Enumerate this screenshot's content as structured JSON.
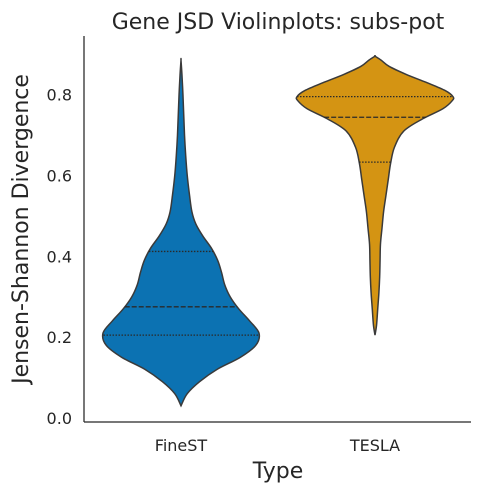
{
  "chart_data": {
    "type": "violin",
    "title": "Gene JSD Violinplots: subs-pot",
    "xlabel": "Type",
    "ylabel": "Jensen-Shannon Divergence",
    "categories": [
      "FineST",
      "TESLA"
    ],
    "ylim": [
      -0.01,
      0.945
    ],
    "yticks": [
      0.0,
      0.2,
      0.4,
      0.6,
      0.8
    ],
    "ytick_labels": [
      "0.0",
      "0.2",
      "0.4",
      "0.6",
      "0.8"
    ],
    "grid": false,
    "legend": "none",
    "series": [
      {
        "category": "FineST",
        "color": "#0c72b2",
        "quartiles": [
          0.205,
          0.275,
          0.412
        ],
        "profile": [
          {
            "y": 0.03,
            "w": 0.0
          },
          {
            "y": 0.06,
            "w": 0.08
          },
          {
            "y": 0.09,
            "w": 0.24
          },
          {
            "y": 0.12,
            "w": 0.46
          },
          {
            "y": 0.15,
            "w": 0.76
          },
          {
            "y": 0.18,
            "w": 0.96
          },
          {
            "y": 0.21,
            "w": 1.0
          },
          {
            "y": 0.24,
            "w": 0.88
          },
          {
            "y": 0.27,
            "w": 0.74
          },
          {
            "y": 0.3,
            "w": 0.63
          },
          {
            "y": 0.33,
            "w": 0.56
          },
          {
            "y": 0.36,
            "w": 0.52
          },
          {
            "y": 0.39,
            "w": 0.47
          },
          {
            "y": 0.42,
            "w": 0.39
          },
          {
            "y": 0.45,
            "w": 0.28
          },
          {
            "y": 0.48,
            "w": 0.19
          },
          {
            "y": 0.51,
            "w": 0.14
          },
          {
            "y": 0.55,
            "w": 0.11
          },
          {
            "y": 0.6,
            "w": 0.08
          },
          {
            "y": 0.65,
            "w": 0.06
          },
          {
            "y": 0.7,
            "w": 0.045
          },
          {
            "y": 0.75,
            "w": 0.035
          },
          {
            "y": 0.8,
            "w": 0.025
          },
          {
            "y": 0.85,
            "w": 0.012
          },
          {
            "y": 0.885,
            "w": 0.0
          }
        ]
      },
      {
        "category": "TESLA",
        "color": "#d49413",
        "quartiles": [
          0.633,
          0.744,
          0.795
        ],
        "profile": [
          {
            "y": 0.205,
            "w": 0.0
          },
          {
            "y": 0.23,
            "w": 0.02
          },
          {
            "y": 0.27,
            "w": 0.035
          },
          {
            "y": 0.31,
            "w": 0.05
          },
          {
            "y": 0.35,
            "w": 0.06
          },
          {
            "y": 0.39,
            "w": 0.065
          },
          {
            "y": 0.43,
            "w": 0.07
          },
          {
            "y": 0.47,
            "w": 0.09
          },
          {
            "y": 0.51,
            "w": 0.11
          },
          {
            "y": 0.55,
            "w": 0.14
          },
          {
            "y": 0.59,
            "w": 0.17
          },
          {
            "y": 0.63,
            "w": 0.2
          },
          {
            "y": 0.67,
            "w": 0.25
          },
          {
            "y": 0.71,
            "w": 0.37
          },
          {
            "y": 0.74,
            "w": 0.61
          },
          {
            "y": 0.765,
            "w": 0.87
          },
          {
            "y": 0.785,
            "w": 0.99
          },
          {
            "y": 0.795,
            "w": 1.0
          },
          {
            "y": 0.81,
            "w": 0.9
          },
          {
            "y": 0.83,
            "w": 0.66
          },
          {
            "y": 0.85,
            "w": 0.4
          },
          {
            "y": 0.87,
            "w": 0.18
          },
          {
            "y": 0.885,
            "w": 0.08
          },
          {
            "y": 0.895,
            "w": 0.0
          }
        ]
      }
    ]
  }
}
